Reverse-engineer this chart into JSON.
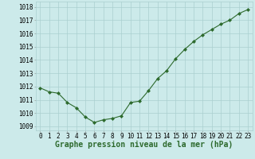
{
  "x": [
    0,
    1,
    2,
    3,
    4,
    5,
    6,
    7,
    8,
    9,
    10,
    11,
    12,
    13,
    14,
    15,
    16,
    17,
    18,
    19,
    20,
    21,
    22,
    23
  ],
  "y": [
    1011.9,
    1011.6,
    1011.5,
    1010.8,
    1010.4,
    1009.7,
    1009.3,
    1009.5,
    1009.6,
    1009.8,
    1010.8,
    1010.9,
    1011.7,
    1012.6,
    1013.2,
    1014.1,
    1014.8,
    1015.4,
    1015.9,
    1016.3,
    1016.7,
    1017.0,
    1017.5,
    1017.8
  ],
  "ylim": [
    1008.7,
    1018.4
  ],
  "yticks": [
    1009,
    1010,
    1011,
    1012,
    1013,
    1014,
    1015,
    1016,
    1017,
    1018
  ],
  "xtick_labels": [
    "0",
    "1",
    "2",
    "3",
    "4",
    "5",
    "6",
    "7",
    "8",
    "9",
    "10",
    "11",
    "12",
    "13",
    "14",
    "15",
    "16",
    "17",
    "18",
    "19",
    "20",
    "21",
    "22",
    "23"
  ],
  "xlabel": "Graphe pression niveau de la mer (hPa)",
  "line_color": "#2d6a2d",
  "marker": "D",
  "marker_size": 2.0,
  "line_width": 0.8,
  "bg_color": "#cceaea",
  "grid_color": "#aacfcf",
  "tick_label_fontsize": 5.5,
  "xlabel_fontsize": 7.0
}
